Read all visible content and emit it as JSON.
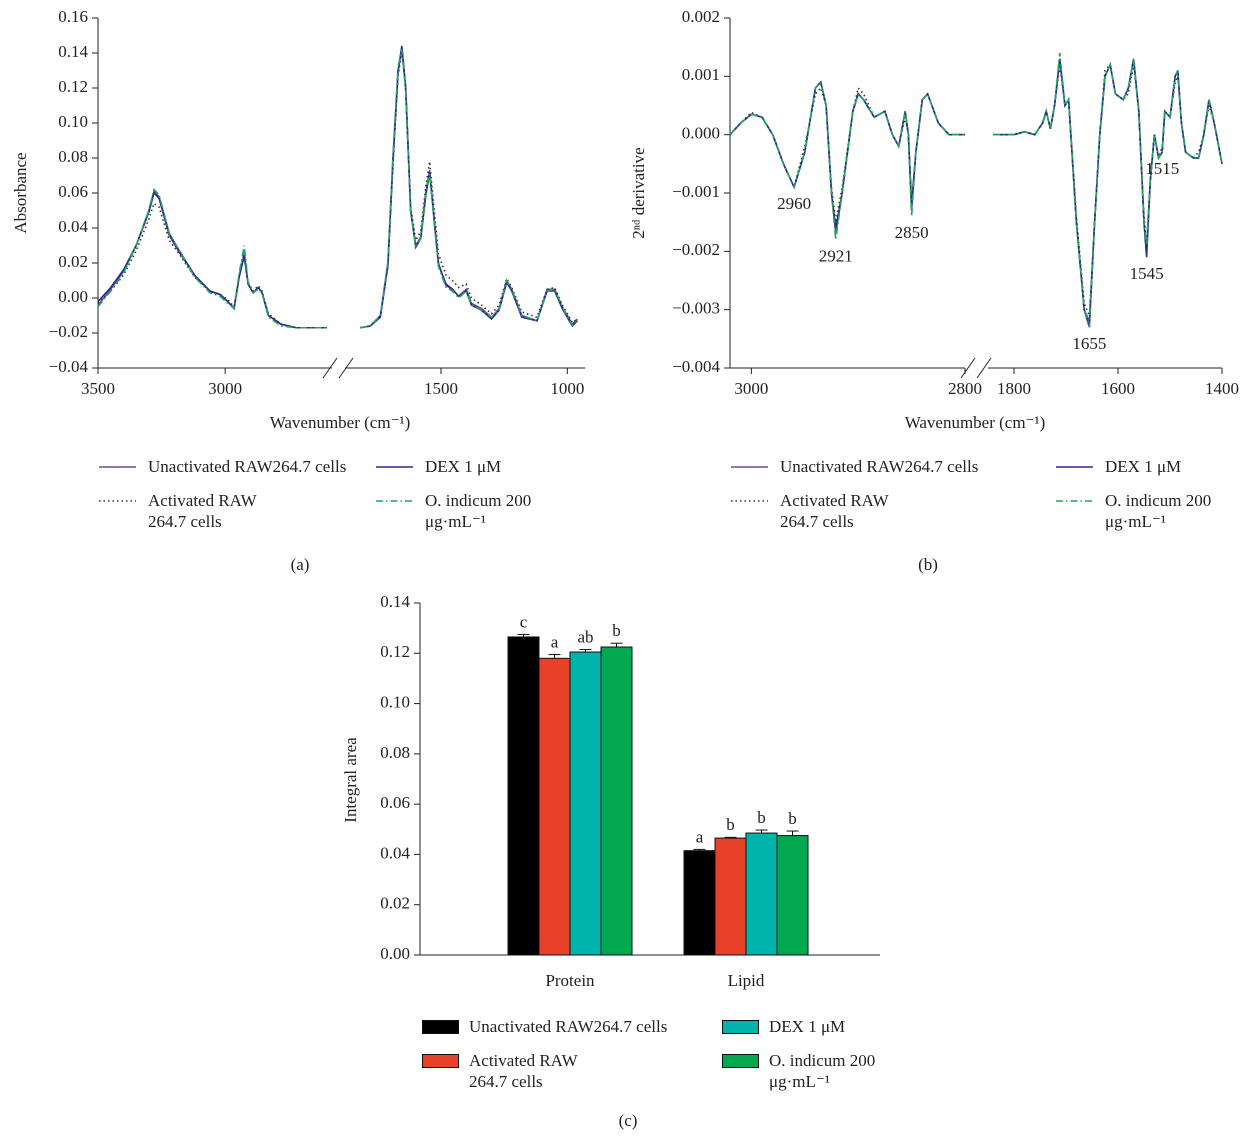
{
  "chart_data": [
    {
      "type": "line",
      "label": "(a)",
      "y_label": "Absorbance",
      "x_label": "Wavenumber (cm⁻¹)",
      "xlim": [
        [
          3500,
          2580
        ],
        [
          1880,
          930
        ]
      ],
      "xticks": [
        3500,
        3000,
        1500,
        1000
      ],
      "ylim": [
        -0.04,
        0.16
      ],
      "yticks": [
        {
          "value": -0.04,
          "label": "−0.04"
        },
        {
          "value": -0.02,
          "label": "−0.02"
        },
        {
          "value": 0,
          "label": "0.00"
        },
        0.02,
        0.04,
        0.06,
        0.08,
        {
          "value": 0.1,
          "label": "0.10"
        },
        0.12,
        0.14,
        0.16
      ],
      "x": [
        3500,
        3450,
        3400,
        3350,
        3300,
        3280,
        3260,
        3220,
        3180,
        3120,
        3060,
        3020,
        2990,
        2965,
        2945,
        2925,
        2910,
        2890,
        2870,
        2855,
        2830,
        2780,
        2720,
        2650,
        2600,
        1820,
        1780,
        1740,
        1710,
        1690,
        1670,
        1655,
        1640,
        1620,
        1600,
        1580,
        1560,
        1545,
        1530,
        1510,
        1480,
        1455,
        1430,
        1400,
        1380,
        1340,
        1300,
        1270,
        1240,
        1220,
        1180,
        1120,
        1080,
        1050,
        1020,
        980,
        960
      ],
      "series": [
        {
          "name": "Unactivated RAW264.7 cells",
          "color": "#6a4c9c",
          "style": "solid",
          "values": [
            -0.004,
            0.005,
            0.015,
            0.03,
            0.05,
            0.061,
            0.058,
            0.037,
            0.027,
            0.013,
            0.004,
            0.002,
            -0.002,
            -0.006,
            0.012,
            0.024,
            0.008,
            0.003,
            0.006,
            0.003,
            -0.01,
            -0.015,
            -0.017,
            -0.017,
            -0.017,
            -0.017,
            -0.016,
            -0.01,
            0.02,
            0.08,
            0.13,
            0.143,
            0.12,
            0.05,
            0.03,
            0.035,
            0.06,
            0.073,
            0.05,
            0.02,
            0.007,
            0.005,
            0.001,
            0.005,
            -0.003,
            -0.006,
            -0.011,
            -0.006,
            0.01,
            0.005,
            -0.01,
            -0.013,
            0.005,
            0.005,
            -0.005,
            -0.015,
            -0.012
          ]
        },
        {
          "name": "Activated RAW 264.7 cells",
          "color": "#333333",
          "style": "dotted",
          "values": [
            -0.003,
            0.004,
            0.013,
            0.027,
            0.045,
            0.054,
            0.052,
            0.033,
            0.025,
            0.012,
            0.004,
            0.002,
            -0.001,
            -0.005,
            0.013,
            0.026,
            0.009,
            0.004,
            0.007,
            0.004,
            -0.009,
            -0.015,
            -0.017,
            -0.017,
            -0.017,
            -0.017,
            -0.016,
            -0.01,
            0.018,
            0.076,
            0.127,
            0.141,
            0.12,
            0.052,
            0.033,
            0.038,
            0.064,
            0.078,
            0.055,
            0.025,
            0.013,
            0.01,
            0.006,
            0.008,
            0,
            -0.004,
            -0.009,
            -0.004,
            0.011,
            0.006,
            -0.008,
            -0.011,
            0.005,
            0.006,
            -0.004,
            -0.014,
            -0.012
          ]
        },
        {
          "name": "DEX 1 μM",
          "color": "#2b2b8c",
          "style": "solid",
          "values": [
            -0.002,
            0.006,
            0.016,
            0.03,
            0.049,
            0.06,
            0.057,
            0.036,
            0.026,
            0.013,
            0.004,
            0.002,
            -0.002,
            -0.006,
            0.012,
            0.025,
            0.008,
            0.003,
            0.006,
            0.003,
            -0.01,
            -0.015,
            -0.017,
            -0.017,
            -0.017,
            -0.017,
            -0.016,
            -0.011,
            0.019,
            0.079,
            0.129,
            0.144,
            0.121,
            0.05,
            0.029,
            0.034,
            0.059,
            0.072,
            0.049,
            0.019,
            0.008,
            0.005,
            0.001,
            0.004,
            -0.004,
            -0.007,
            -0.012,
            -0.007,
            0.009,
            0.004,
            -0.011,
            -0.013,
            0.004,
            0.004,
            -0.006,
            -0.016,
            -0.013
          ]
        },
        {
          "name": "O. indicum 200 μg·mL⁻¹",
          "color": "#22a65c",
          "style": "dashdot",
          "values": [
            -0.005,
            0.004,
            0.014,
            0.03,
            0.05,
            0.062,
            0.059,
            0.037,
            0.027,
            0.012,
            0.003,
            0.001,
            -0.003,
            -0.006,
            0.014,
            0.03,
            0.009,
            0.003,
            0.005,
            0.003,
            -0.011,
            -0.016,
            -0.017,
            -0.017,
            -0.017,
            -0.017,
            -0.016,
            -0.01,
            0.021,
            0.082,
            0.132,
            0.142,
            0.119,
            0.049,
            0.03,
            0.034,
            0.058,
            0.071,
            0.048,
            0.018,
            0.006,
            0.004,
            0,
            0.004,
            -0.004,
            -0.007,
            -0.011,
            -0.007,
            0.01,
            0.005,
            -0.01,
            -0.013,
            0.004,
            0.005,
            -0.005,
            -0.016,
            -0.013
          ]
        }
      ]
    },
    {
      "type": "line",
      "label": "(b)",
      "y_label": "2ⁿᵈ derivative",
      "x_label": "Wavenumber (cm⁻¹)",
      "xlim": [
        [
          3020,
          2800
        ],
        [
          1850,
          1400
        ]
      ],
      "xticks": [
        3000,
        2800,
        1800,
        1600,
        1400
      ],
      "ylim": [
        -0.004,
        0.002
      ],
      "yticks": [
        {
          "value": -0.004,
          "label": "−0.004"
        },
        {
          "value": -0.003,
          "label": "−0.003"
        },
        {
          "value": -0.002,
          "label": "−0.002"
        },
        {
          "value": -0.001,
          "label": "−0.001"
        },
        {
          "value": 0,
          "label": "0.000"
        },
        0.001,
        0.002
      ],
      "annotations": [
        {
          "text": "2960",
          "x": 2960
        },
        {
          "text": "2921",
          "x": 2921
        },
        {
          "text": "2850",
          "x": 2850
        },
        {
          "text": "1655",
          "x": 1655
        },
        {
          "text": "1545",
          "x": 1545
        },
        {
          "text": "1515",
          "x": 1515
        }
      ],
      "x": [
        3020,
        3010,
        3000,
        2990,
        2980,
        2970,
        2960,
        2950,
        2940,
        2935,
        2930,
        2925,
        2921,
        2915,
        2905,
        2900,
        2895,
        2885,
        2875,
        2868,
        2862,
        2856,
        2853,
        2850,
        2846,
        2840,
        2835,
        2825,
        2815,
        2800,
        1840,
        1800,
        1780,
        1760,
        1745,
        1738,
        1730,
        1722,
        1712,
        1702,
        1695,
        1680,
        1665,
        1655,
        1645,
        1635,
        1625,
        1615,
        1605,
        1590,
        1580,
        1570,
        1560,
        1550,
        1545,
        1538,
        1530,
        1522,
        1515,
        1510,
        1500,
        1490,
        1485,
        1478,
        1470,
        1455,
        1445,
        1435,
        1425,
        1415,
        1400
      ],
      "series": [
        {
          "name": "Unactivated RAW264.7 cells",
          "color": "#6a4c9c",
          "style": "solid",
          "values": [
            0,
            0.0002,
            0.00035,
            0.0003,
            0,
            -0.0005,
            -0.0009,
            -0.0003,
            0.0008,
            0.0009,
            0.0005,
            -0.001,
            -0.0017,
            -0.001,
            0.0004,
            0.0007,
            0.0006,
            0.0003,
            0.0004,
            0,
            -0.0002,
            0.0004,
            0,
            -0.0013,
            -0.0003,
            0.0006,
            0.0007,
            0.0002,
            0,
            0,
            0,
            0,
            5e-05,
            0,
            0.0002,
            0.0004,
            0.0001,
            0.0005,
            0.0013,
            0.0005,
            0.0006,
            -0.0015,
            -0.003,
            -0.0032,
            -0.0015,
            0,
            0.001,
            0.0012,
            0.0007,
            0.0006,
            0.0008,
            0.0013,
            0.0004,
            -0.0015,
            -0.002,
            -0.0008,
            0,
            -0.0004,
            -0.0003,
            0.0004,
            0.0003,
            0.001,
            0.0011,
            0.0002,
            -0.0003,
            -0.0004,
            -0.0004,
            0,
            0.0006,
            0.0002,
            -0.0005
          ]
        },
        {
          "name": "Activated RAW 264.7 cells",
          "color": "#333333",
          "style": "dotted",
          "values": [
            0,
            0.0002,
            0.00038,
            0.0003,
            0,
            -0.0005,
            -0.0009,
            -0.0002,
            0.0007,
            0.0008,
            0.0005,
            -0.0009,
            -0.0015,
            -0.0009,
            0.0004,
            0.0008,
            0.0007,
            0.0003,
            0.0004,
            0,
            -0.0002,
            0.0003,
            0,
            -0.0012,
            -0.0003,
            0.0006,
            0.0007,
            0.0002,
            0,
            0,
            0,
            0,
            5e-05,
            0,
            0.0002,
            0.0004,
            0.0001,
            0.0005,
            0.0012,
            0.0005,
            0.0006,
            -0.0014,
            -0.0029,
            -0.0031,
            -0.0015,
            0,
            0.0011,
            0.0012,
            0.0007,
            0.0006,
            0.0007,
            0.0012,
            0.0004,
            -0.0014,
            -0.0019,
            -0.0008,
            0,
            -0.0004,
            -0.0002,
            0.0004,
            0.0003,
            0.0009,
            0.001,
            0.0002,
            -0.0003,
            -0.0004,
            -0.0003,
            0,
            0.0005,
            0.0002,
            -0.0005
          ]
        },
        {
          "name": "DEX 1 μM",
          "color": "#2b2b8c",
          "style": "solid",
          "values": [
            0,
            0.0002,
            0.00035,
            0.0003,
            0,
            -0.0005,
            -0.0009,
            -0.0003,
            0.0008,
            0.0009,
            0.0005,
            -0.001,
            -0.0016,
            -0.001,
            0.0004,
            0.0007,
            0.0006,
            0.0003,
            0.0004,
            0,
            -0.0002,
            0.0004,
            0,
            -0.0012,
            -0.0003,
            0.0006,
            0.0007,
            0.0002,
            0,
            0,
            0,
            0,
            5e-05,
            0,
            0.0002,
            0.0004,
            0.0001,
            0.0005,
            0.0013,
            0.0005,
            0.0006,
            -0.0015,
            -0.003,
            -0.0033,
            -0.0015,
            0,
            0.001,
            0.0012,
            0.0007,
            0.0006,
            0.0008,
            0.0013,
            0.0004,
            -0.0015,
            -0.0021,
            -0.0008,
            0,
            -0.0004,
            -0.0003,
            0.0004,
            0.0003,
            0.001,
            0.0011,
            0.0002,
            -0.0003,
            -0.0004,
            -0.0004,
            0,
            0.0006,
            0.0002,
            -0.0005
          ]
        },
        {
          "name": "O. indicum 200 μg·mL⁻¹",
          "color": "#22a65c",
          "style": "dashdot",
          "values": [
            0,
            0.0002,
            0.00035,
            0.0003,
            0,
            -0.0005,
            -0.0009,
            -0.0003,
            0.0008,
            0.0009,
            0.0005,
            -0.001,
            -0.0018,
            -0.001,
            0.0004,
            0.0007,
            0.0006,
            0.0003,
            0.0004,
            0,
            -0.0002,
            0.0004,
            0,
            -0.0014,
            -0.0003,
            0.0006,
            0.0007,
            0.0002,
            0,
            0,
            0,
            0,
            5e-05,
            0,
            0.0002,
            0.0004,
            0.0001,
            0.0005,
            0.0014,
            0.0005,
            0.0006,
            -0.0015,
            -0.003,
            -0.0033,
            -0.0015,
            0,
            0.001,
            0.0012,
            0.0007,
            0.0006,
            0.0008,
            0.0013,
            0.0004,
            -0.0015,
            -0.0019,
            -0.0008,
            0,
            -0.0004,
            -0.0003,
            0.0004,
            0.0003,
            0.001,
            0.0011,
            0.0002,
            -0.0003,
            -0.0004,
            -0.0004,
            0,
            0.0006,
            0.0002,
            -0.0005
          ]
        }
      ]
    },
    {
      "type": "bar",
      "label": "(c)",
      "y_label": "Integral area",
      "categories": [
        "Protein",
        "Lipid"
      ],
      "ylim": [
        0,
        0.14
      ],
      "yticks": [
        {
          "value": 0,
          "label": "0.00"
        },
        0.02,
        0.04,
        0.06,
        0.08,
        {
          "value": 0.1,
          "label": "0.10"
        },
        0.12,
        0.14
      ],
      "series": [
        {
          "name": "Unactivated RAW264.7 cells",
          "color": "#000000",
          "values": [
            0.1265,
            0.0415
          ],
          "errors": [
            0.001,
            0.0005
          ],
          "letters": [
            "c",
            "a"
          ]
        },
        {
          "name": "Activated RAW 264.7 cells",
          "color": "#e8412a",
          "values": [
            0.118,
            0.0465
          ],
          "errors": [
            0.0015,
            0.0003
          ],
          "letters": [
            "a",
            "b"
          ]
        },
        {
          "name": "DEX 1 μM",
          "color": "#00b3ad",
          "values": [
            0.1205,
            0.0485
          ],
          "errors": [
            0.001,
            0.0012
          ],
          "letters": [
            "ab",
            "b"
          ]
        },
        {
          "name": "O. indicum 200 μg·mL⁻¹",
          "color": "#00a94f",
          "values": [
            0.1225,
            0.0475
          ],
          "errors": [
            0.0015,
            0.0018
          ],
          "letters": [
            "b",
            "b"
          ]
        }
      ]
    }
  ]
}
